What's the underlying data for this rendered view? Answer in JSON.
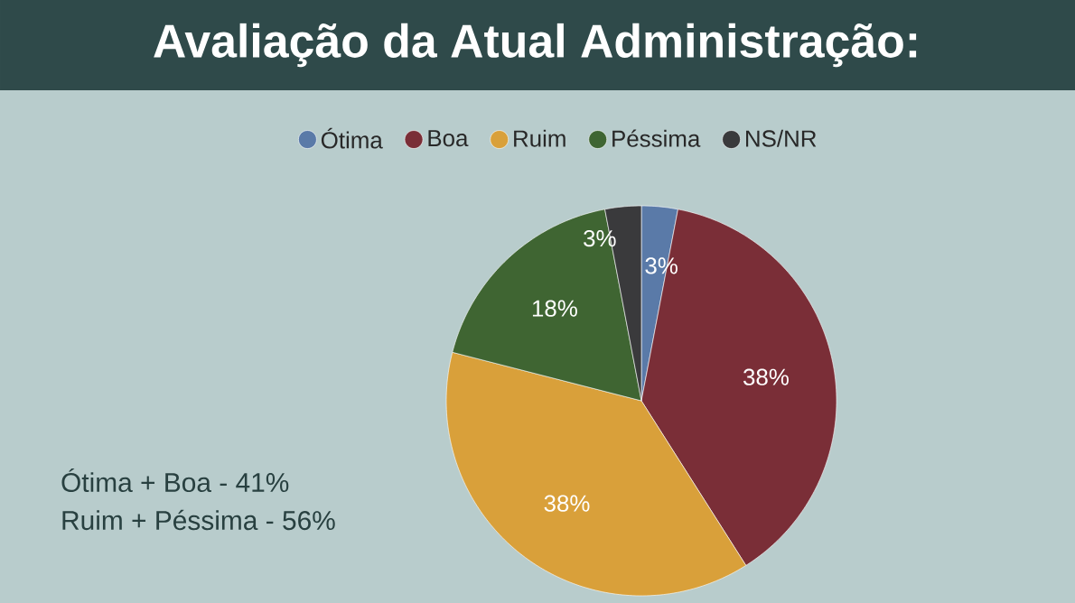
{
  "chart_data": {
    "type": "pie",
    "title": "Avaliação da Atual Administração:",
    "categories": [
      "Ótima",
      "Boa",
      "Ruim",
      "Péssima",
      "NS/NR"
    ],
    "values": [
      3,
      38,
      38,
      18,
      3
    ],
    "colors": [
      "#5a7aa8",
      "#7a2e37",
      "#d9a03a",
      "#3f6532",
      "#3a3a3c"
    ],
    "value_labels": [
      "3%",
      "38%",
      "38%",
      "18%",
      "3%"
    ],
    "legend": "top",
    "annotations": [
      "Ótima + Boa - 41%",
      "Ruim + Péssima - 56%"
    ]
  }
}
